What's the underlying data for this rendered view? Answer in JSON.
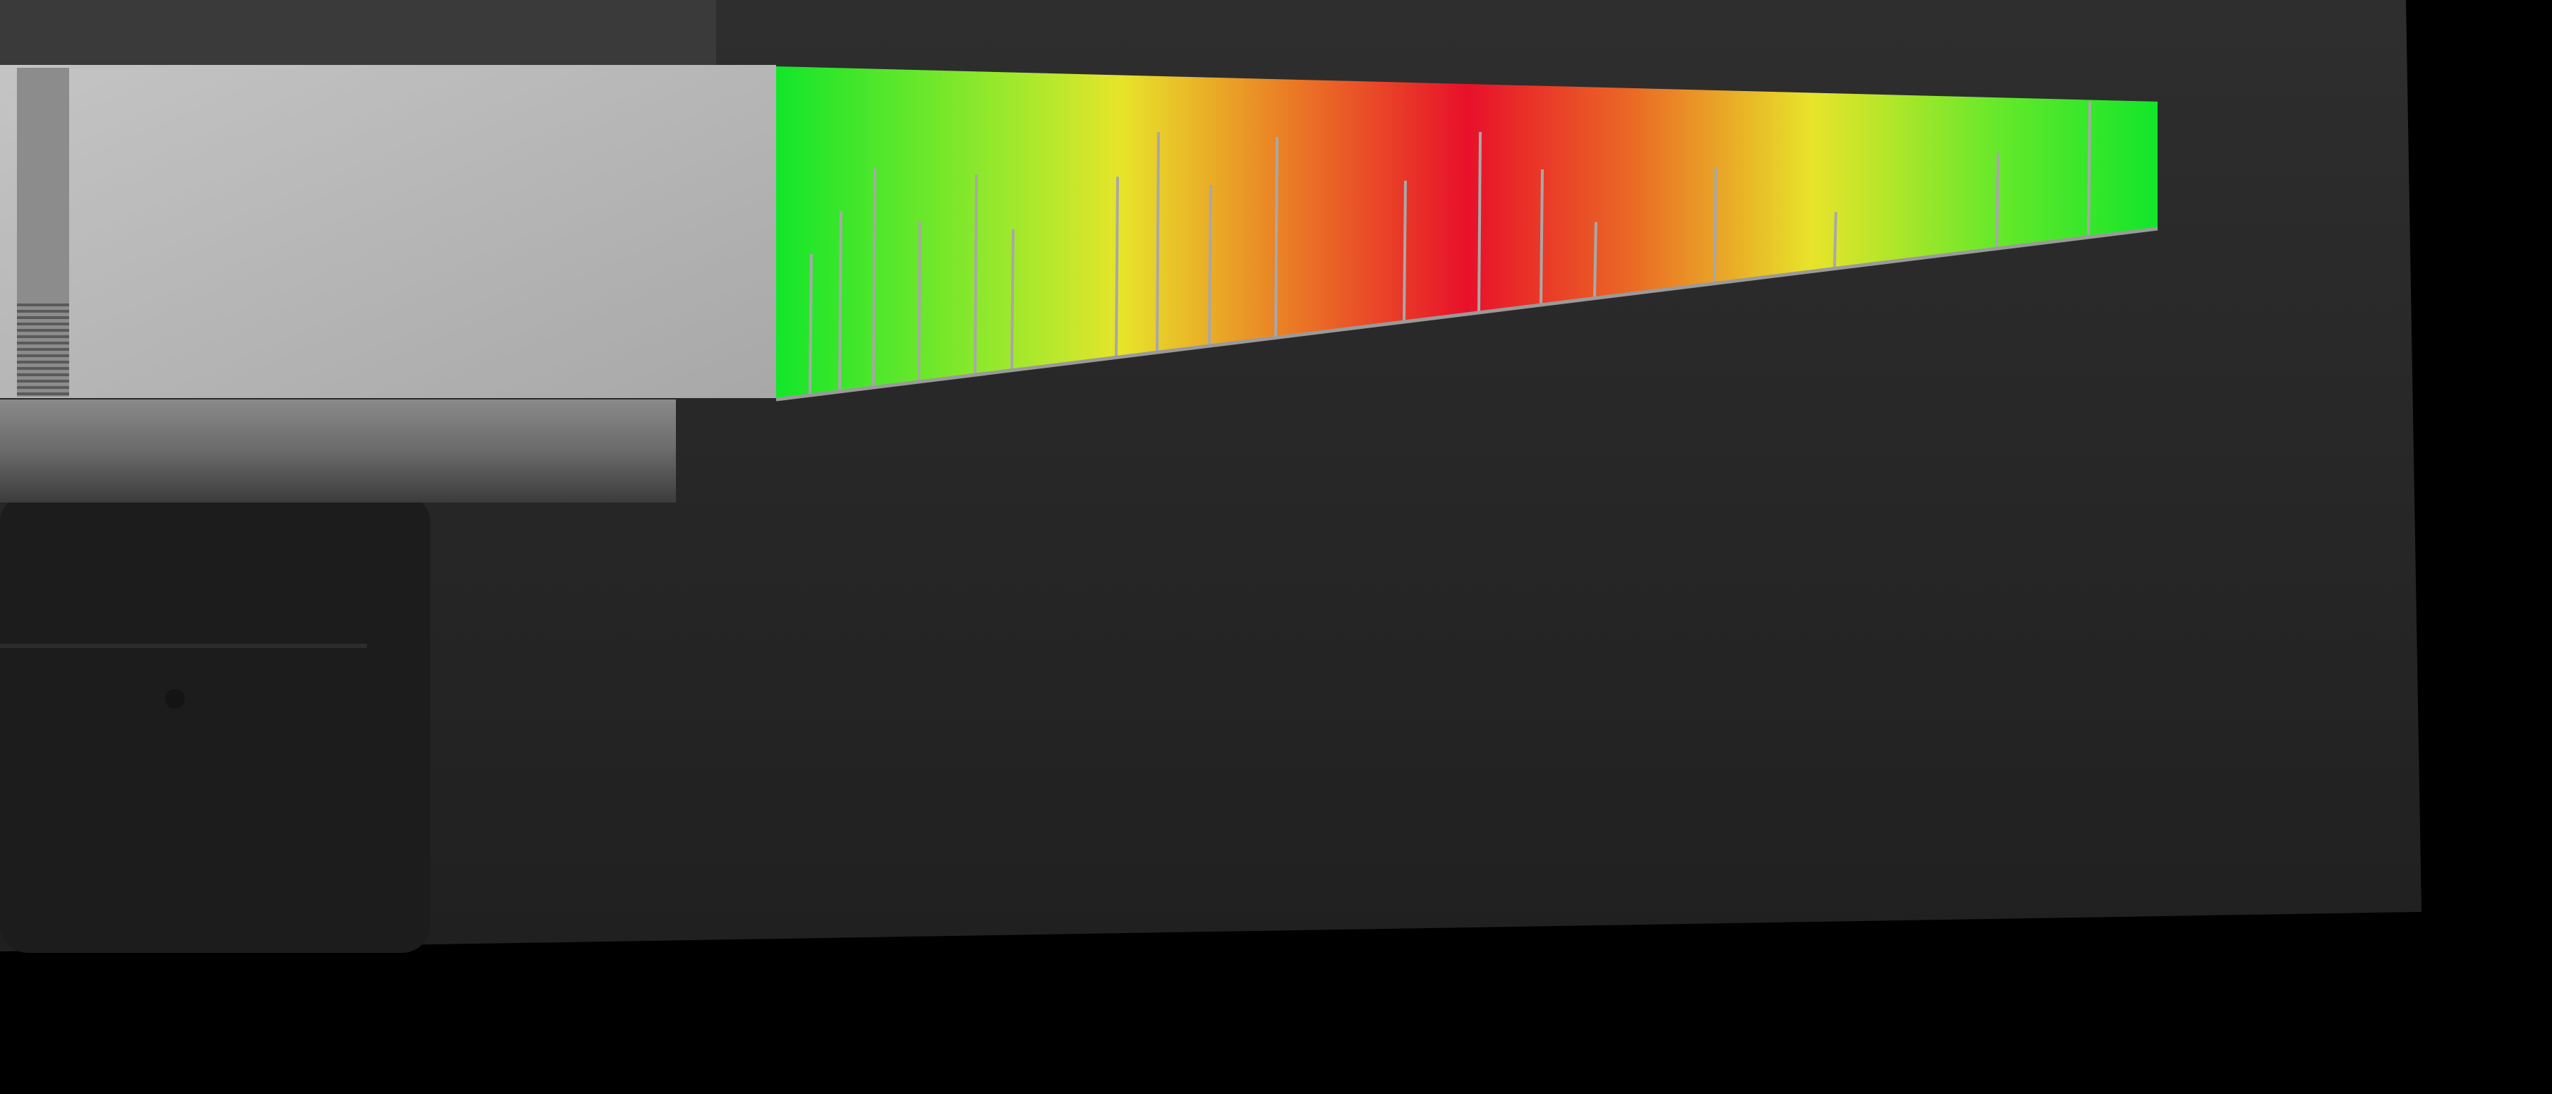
{
  "scene": {
    "description_visible_text": "",
    "colors": {
      "outer_background": "#000000",
      "backdrop": "#222222",
      "backdrop_top": "#333333",
      "fixture_block": "#b8b8b8",
      "fixture_bar": "#6a6a6a",
      "fixture_shadow": "#1c1c1c",
      "crack_line": "#a8a8a8",
      "gradient_green": "#12e62a",
      "gradient_yellow": "#e8e42a",
      "gradient_orange": "#ea7d25",
      "gradient_red": "#e8102a"
    },
    "color_scale_stops": [
      {
        "offset": 0.0,
        "color": "#12e62a"
      },
      {
        "offset": 0.2,
        "color": "#b8e82c"
      },
      {
        "offset": 0.25,
        "color": "#e8e42a"
      },
      {
        "offset": 0.37,
        "color": "#ea7d25"
      },
      {
        "offset": 0.5,
        "color": "#e8102a"
      },
      {
        "offset": 0.62,
        "color": "#ea6a25"
      },
      {
        "offset": 0.75,
        "color": "#e8e42a"
      },
      {
        "offset": 0.88,
        "color": "#6ae82a"
      },
      {
        "offset": 1.0,
        "color": "#12e62a"
      }
    ],
    "crack_count": 18
  }
}
